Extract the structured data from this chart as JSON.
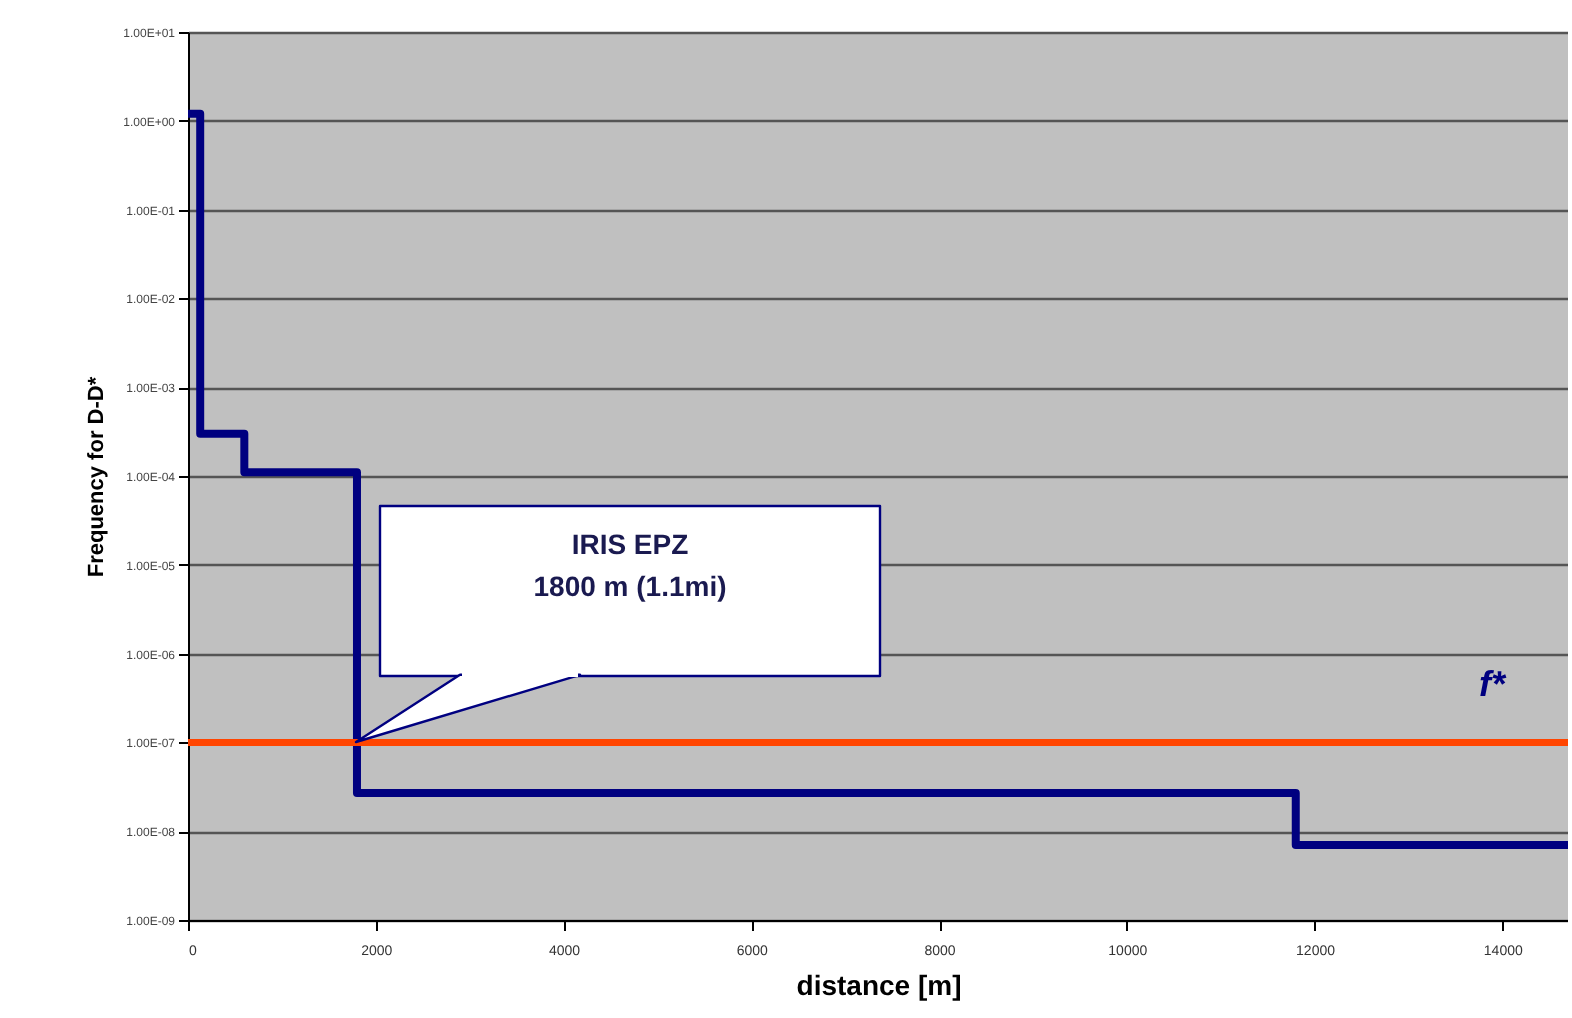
{
  "chart_data": {
    "type": "step",
    "xlabel": "distance [m]",
    "ylabel": "Frequency for D-D*",
    "x": [
      0,
      130,
      600,
      1800,
      11800,
      14700
    ],
    "series": [
      {
        "color": "#000080",
        "values": [
          1.2,
          0.0003,
          0.00011,
          2.7e-08,
          7e-09,
          7e-09
        ]
      }
    ],
    "xlim": [
      0,
      14700
    ],
    "xticks": [
      0,
      2000,
      4000,
      6000,
      8000,
      10000,
      12000,
      14000
    ],
    "ylim": [
      1e-09,
      10
    ],
    "log": true,
    "yticks": [
      {
        "value": 10,
        "label": "1.00E+01"
      },
      {
        "value": 1,
        "label": "1.00E+00"
      },
      {
        "value": 0.1,
        "label": "1.00E-01"
      },
      {
        "value": 0.01,
        "label": "1.00E-02"
      },
      {
        "value": 0.001,
        "label": "1.00E-03"
      },
      {
        "value": 0.0001,
        "label": "1.00E-04"
      },
      {
        "value": 1e-05,
        "label": "1.00E-05"
      },
      {
        "value": 1e-06,
        "label": "1.00E-06"
      },
      {
        "value": 1e-07,
        "label": "1.00E-07"
      },
      {
        "value": 1e-08,
        "label": "1.00E-08"
      },
      {
        "value": 1e-09,
        "label": "1.00E-09"
      }
    ],
    "grid": "y",
    "marker": "none",
    "line_style": "solid",
    "ref_lines": [
      {
        "axis": "y",
        "value": 1e-07,
        "label": "f*",
        "color": "#ff4500"
      }
    ],
    "annotations": [
      "IRIS EPZ\n1800 m (1.1mi)"
    ]
  }
}
